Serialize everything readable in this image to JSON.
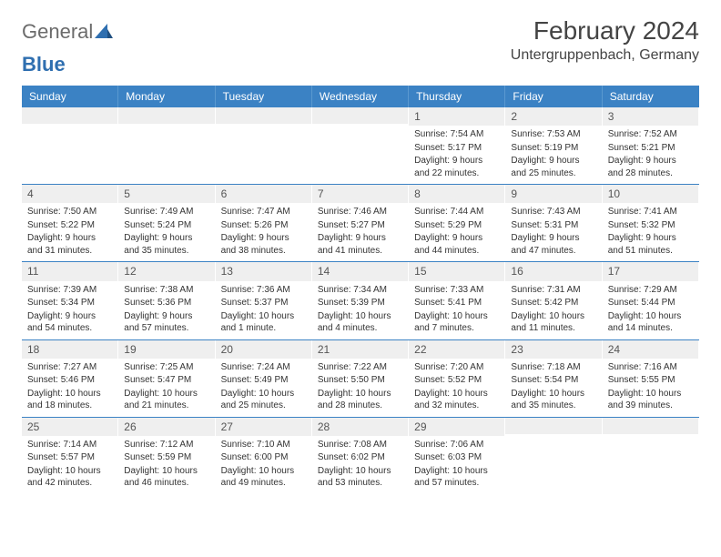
{
  "logo": {
    "text1": "General",
    "text2": "Blue"
  },
  "title": "February 2024",
  "location": "Untergruppenbach, Germany",
  "colors": {
    "header_bg": "#3b82c4",
    "header_text": "#ffffff",
    "daynum_bg": "#efefef",
    "divider": "#3b82c4",
    "body_text": "#333333",
    "logo_gray": "#6b6b6b",
    "logo_blue": "#2f6fb0"
  },
  "days_of_week": [
    "Sunday",
    "Monday",
    "Tuesday",
    "Wednesday",
    "Thursday",
    "Friday",
    "Saturday"
  ],
  "weeks": [
    [
      null,
      null,
      null,
      null,
      {
        "n": "1",
        "sr": "7:54 AM",
        "ss": "5:17 PM",
        "dl": "9 hours and 22 minutes."
      },
      {
        "n": "2",
        "sr": "7:53 AM",
        "ss": "5:19 PM",
        "dl": "9 hours and 25 minutes."
      },
      {
        "n": "3",
        "sr": "7:52 AM",
        "ss": "5:21 PM",
        "dl": "9 hours and 28 minutes."
      }
    ],
    [
      {
        "n": "4",
        "sr": "7:50 AM",
        "ss": "5:22 PM",
        "dl": "9 hours and 31 minutes."
      },
      {
        "n": "5",
        "sr": "7:49 AM",
        "ss": "5:24 PM",
        "dl": "9 hours and 35 minutes."
      },
      {
        "n": "6",
        "sr": "7:47 AM",
        "ss": "5:26 PM",
        "dl": "9 hours and 38 minutes."
      },
      {
        "n": "7",
        "sr": "7:46 AM",
        "ss": "5:27 PM",
        "dl": "9 hours and 41 minutes."
      },
      {
        "n": "8",
        "sr": "7:44 AM",
        "ss": "5:29 PM",
        "dl": "9 hours and 44 minutes."
      },
      {
        "n": "9",
        "sr": "7:43 AM",
        "ss": "5:31 PM",
        "dl": "9 hours and 47 minutes."
      },
      {
        "n": "10",
        "sr": "7:41 AM",
        "ss": "5:32 PM",
        "dl": "9 hours and 51 minutes."
      }
    ],
    [
      {
        "n": "11",
        "sr": "7:39 AM",
        "ss": "5:34 PM",
        "dl": "9 hours and 54 minutes."
      },
      {
        "n": "12",
        "sr": "7:38 AM",
        "ss": "5:36 PM",
        "dl": "9 hours and 57 minutes."
      },
      {
        "n": "13",
        "sr": "7:36 AM",
        "ss": "5:37 PM",
        "dl": "10 hours and 1 minute."
      },
      {
        "n": "14",
        "sr": "7:34 AM",
        "ss": "5:39 PM",
        "dl": "10 hours and 4 minutes."
      },
      {
        "n": "15",
        "sr": "7:33 AM",
        "ss": "5:41 PM",
        "dl": "10 hours and 7 minutes."
      },
      {
        "n": "16",
        "sr": "7:31 AM",
        "ss": "5:42 PM",
        "dl": "10 hours and 11 minutes."
      },
      {
        "n": "17",
        "sr": "7:29 AM",
        "ss": "5:44 PM",
        "dl": "10 hours and 14 minutes."
      }
    ],
    [
      {
        "n": "18",
        "sr": "7:27 AM",
        "ss": "5:46 PM",
        "dl": "10 hours and 18 minutes."
      },
      {
        "n": "19",
        "sr": "7:25 AM",
        "ss": "5:47 PM",
        "dl": "10 hours and 21 minutes."
      },
      {
        "n": "20",
        "sr": "7:24 AM",
        "ss": "5:49 PM",
        "dl": "10 hours and 25 minutes."
      },
      {
        "n": "21",
        "sr": "7:22 AM",
        "ss": "5:50 PM",
        "dl": "10 hours and 28 minutes."
      },
      {
        "n": "22",
        "sr": "7:20 AM",
        "ss": "5:52 PM",
        "dl": "10 hours and 32 minutes."
      },
      {
        "n": "23",
        "sr": "7:18 AM",
        "ss": "5:54 PM",
        "dl": "10 hours and 35 minutes."
      },
      {
        "n": "24",
        "sr": "7:16 AM",
        "ss": "5:55 PM",
        "dl": "10 hours and 39 minutes."
      }
    ],
    [
      {
        "n": "25",
        "sr": "7:14 AM",
        "ss": "5:57 PM",
        "dl": "10 hours and 42 minutes."
      },
      {
        "n": "26",
        "sr": "7:12 AM",
        "ss": "5:59 PM",
        "dl": "10 hours and 46 minutes."
      },
      {
        "n": "27",
        "sr": "7:10 AM",
        "ss": "6:00 PM",
        "dl": "10 hours and 49 minutes."
      },
      {
        "n": "28",
        "sr": "7:08 AM",
        "ss": "6:02 PM",
        "dl": "10 hours and 53 minutes."
      },
      {
        "n": "29",
        "sr": "7:06 AM",
        "ss": "6:03 PM",
        "dl": "10 hours and 57 minutes."
      },
      null,
      null
    ]
  ],
  "labels": {
    "sunrise": "Sunrise:",
    "sunset": "Sunset:",
    "daylight": "Daylight:"
  }
}
